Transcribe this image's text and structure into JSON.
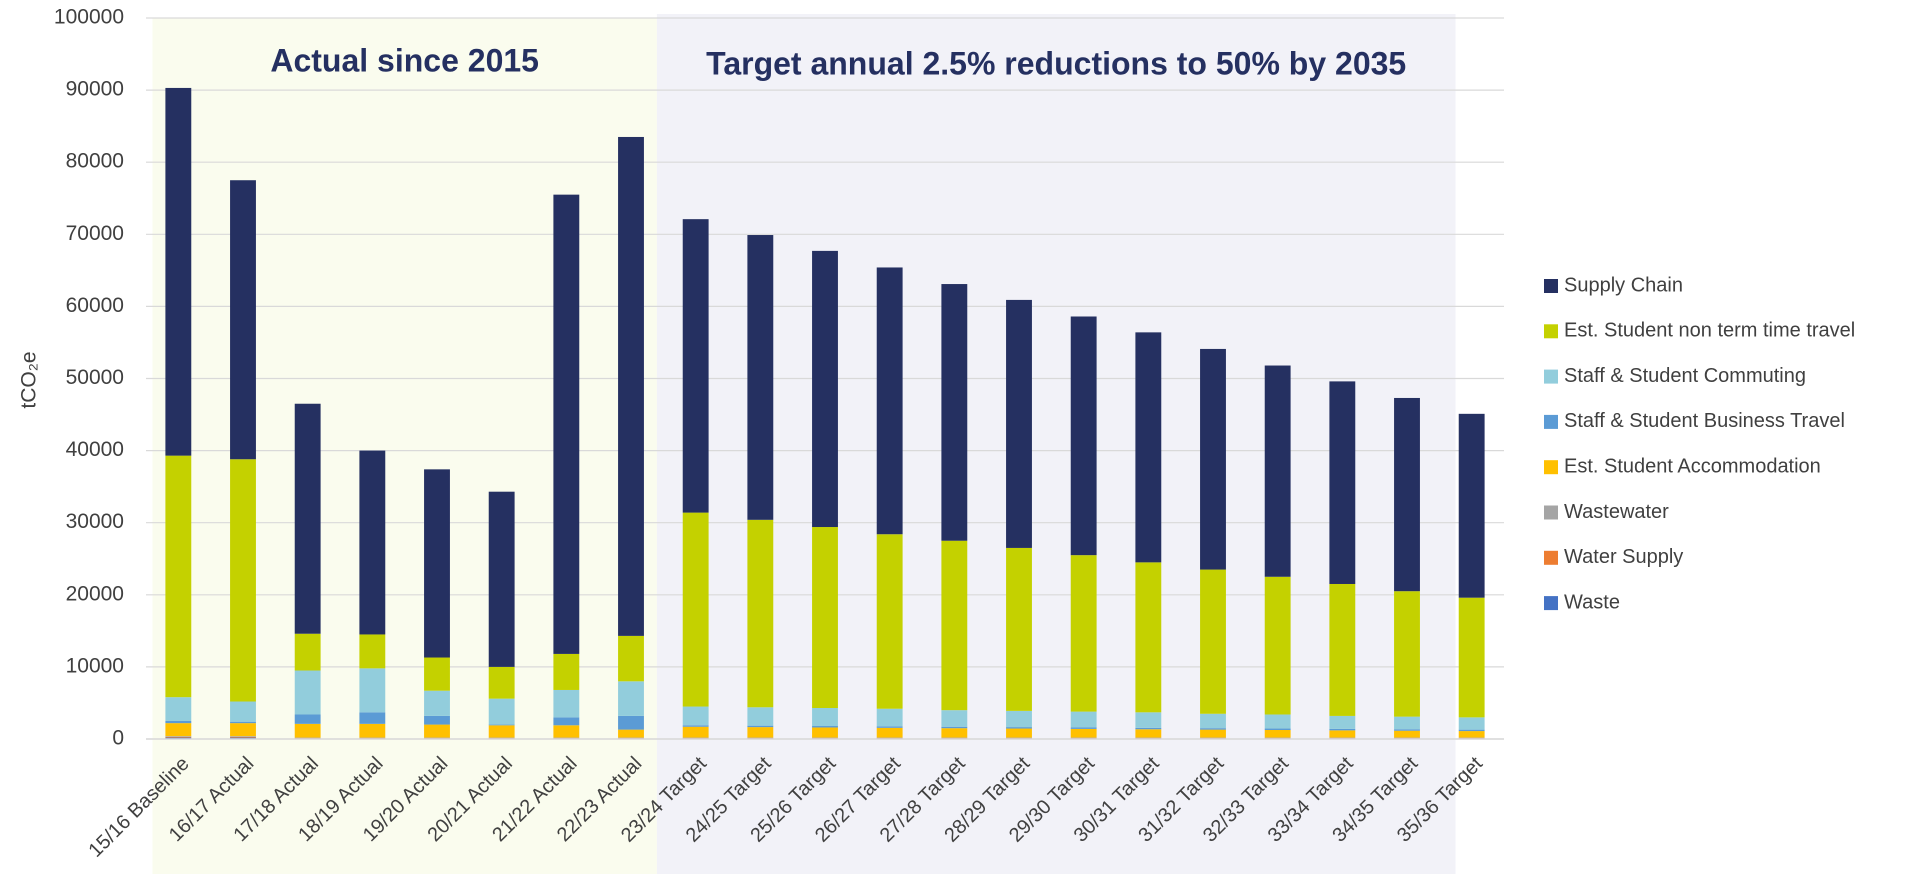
{
  "chart_data": {
    "type": "stacked_bar",
    "y_label": "tCO₂e",
    "annotations": [
      "Actual since 2015",
      "Target annual 2.5% reductions to 50% by 2035"
    ],
    "categories": [
      "15/16 Baseline",
      "16/17 Actual",
      "17/18 Actual",
      "18/19 Actual",
      "19/20 Actual",
      "20/21 Actual",
      "21/22 Actual",
      "22/23 Actual",
      "23/24 Target",
      "24/25 Target",
      "25/26 Target",
      "26/27 Target",
      "27/28 Target",
      "28/29 Target",
      "29/30 Target",
      "30/31 Target",
      "31/32 Target",
      "32/33 Target",
      "33/34 Target",
      "34/35 Target",
      "35/36 Target"
    ],
    "series": [
      {
        "name": "Waste",
        "color": "#4472c4",
        "values": [
          200,
          200,
          100,
          100,
          100,
          100,
          100,
          100,
          100,
          100,
          100,
          100,
          100,
          100,
          100,
          100,
          100,
          100,
          100,
          100,
          100
        ]
      },
      {
        "name": "Water Supply",
        "color": "#ed7d31",
        "values": [
          100,
          100,
          50,
          50,
          50,
          50,
          50,
          50,
          50,
          50,
          50,
          50,
          50,
          50,
          50,
          50,
          50,
          50,
          50,
          50,
          50
        ]
      },
      {
        "name": "Wastewater",
        "color": "#a5a5a5",
        "values": [
          100,
          100,
          50,
          50,
          50,
          50,
          50,
          50,
          50,
          50,
          50,
          50,
          50,
          50,
          50,
          50,
          50,
          50,
          50,
          50,
          50
        ]
      },
      {
        "name": "Est. Student Accommodation",
        "color": "#ffc000",
        "values": [
          1800,
          1800,
          1900,
          1900,
          1800,
          1700,
          1700,
          1100,
          1500,
          1450,
          1400,
          1350,
          1300,
          1250,
          1200,
          1150,
          1100,
          1050,
          1000,
          950,
          900
        ]
      },
      {
        "name": "Staff & Student Business Travel",
        "color": "#5b9bd5",
        "values": [
          300,
          200,
          1300,
          1600,
          1200,
          100,
          1100,
          1900,
          200,
          200,
          200,
          200,
          200,
          200,
          200,
          200,
          200,
          200,
          200,
          200,
          200
        ]
      },
      {
        "name": "Staff & Student Commuting",
        "color": "#92cddc",
        "values": [
          3300,
          2800,
          6100,
          6100,
          3500,
          3600,
          3800,
          4800,
          2600,
          2550,
          2500,
          2450,
          2300,
          2250,
          2200,
          2150,
          2000,
          1950,
          1800,
          1750,
          1700
        ]
      },
      {
        "name": "Est. Student non term time travel",
        "color": "#c4d100",
        "values": [
          33500,
          33600,
          5100,
          4700,
          4600,
          4400,
          5000,
          6300,
          26900,
          26000,
          25100,
          24200,
          23500,
          22600,
          21700,
          20800,
          20000,
          19100,
          18300,
          17400,
          16600
        ]
      },
      {
        "name": "Supply Chain",
        "color": "#253061",
        "values": [
          51000,
          38700,
          31900,
          25500,
          26100,
          24300,
          63700,
          69200,
          40700,
          39500,
          38300,
          37000,
          35600,
          34400,
          33100,
          31900,
          30600,
          29300,
          28100,
          26800,
          25500
        ]
      }
    ],
    "ylim": [
      0,
      100000
    ],
    "yticks": [
      0,
      10000,
      20000,
      30000,
      40000,
      50000,
      60000,
      70000,
      80000,
      90000,
      100000
    ],
    "grid": true,
    "legend": "right"
  }
}
